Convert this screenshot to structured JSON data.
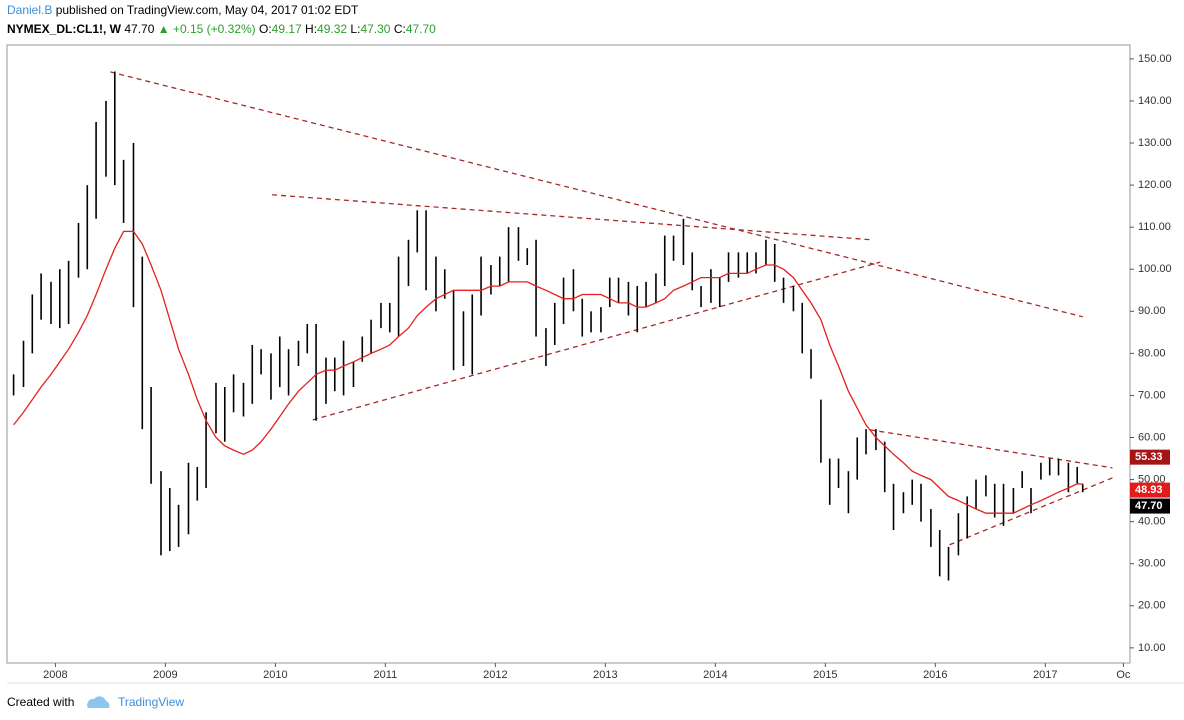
{
  "header": {
    "author": "Daniel.B",
    "published": "published on TradingView.com, May 04, 2017 01:02 EDT",
    "symbol": "NYMEX_DL:CL1!, W",
    "price": "47.70",
    "change": "▲ +0.15 (+0.32%)",
    "ohlc": [
      {
        "label": "O:",
        "value": "49.17"
      },
      {
        "label": "H:",
        "value": "49.32"
      },
      {
        "label": "L:",
        "value": "47.30"
      },
      {
        "label": "C:",
        "value": "47.70"
      }
    ]
  },
  "footer": {
    "created": "Created with",
    "brand": "TradingView"
  },
  "chart_data": {
    "type": "bar_range",
    "xlim": [
      2007.56,
      2017.77
    ],
    "ylim": [
      6.4,
      153.3
    ],
    "xticks": [
      2008,
      2009,
      2010,
      2011,
      2012,
      2013,
      2014,
      2015,
      2016,
      2017,
      {
        "value": 2017.71,
        "label": "Oc"
      }
    ],
    "yticks": [
      {
        "value": 150,
        "label": "150.00"
      },
      {
        "value": 140,
        "label": "140.00"
      },
      {
        "value": 130,
        "label": "130.00"
      },
      {
        "value": 120,
        "label": "120.00"
      },
      {
        "value": 110,
        "label": "110.00"
      },
      {
        "value": 100,
        "label": "100.00"
      },
      {
        "value": 90,
        "label": "90.00"
      },
      {
        "value": 80,
        "label": "80.00"
      },
      {
        "value": 70,
        "label": "70.00"
      },
      {
        "value": 60,
        "label": "60.00"
      },
      {
        "value": 50,
        "label": "50.00"
      },
      {
        "value": 40,
        "label": "40.00"
      },
      {
        "value": 30,
        "label": "30.00"
      },
      {
        "value": 20,
        "label": "20.00"
      },
      {
        "value": 10,
        "label": "10.00"
      }
    ],
    "bar_color": "#000000",
    "ma_color": "#e52020",
    "trend_color": "#a52a2a",
    "x": [
      2007.62,
      2007.71,
      2007.79,
      2007.87,
      2007.96,
      2008.04,
      2008.12,
      2008.21,
      2008.29,
      2008.37,
      2008.46,
      2008.54,
      2008.62,
      2008.71,
      2008.79,
      2008.87,
      2008.96,
      2009.04,
      2009.12,
      2009.21,
      2009.29,
      2009.37,
      2009.46,
      2009.54,
      2009.62,
      2009.71,
      2009.79,
      2009.87,
      2009.96,
      2010.04,
      2010.12,
      2010.21,
      2010.29,
      2010.37,
      2010.46,
      2010.54,
      2010.62,
      2010.71,
      2010.79,
      2010.87,
      2010.96,
      2011.04,
      2011.12,
      2011.21,
      2011.29,
      2011.37,
      2011.46,
      2011.54,
      2011.62,
      2011.71,
      2011.79,
      2011.87,
      2011.96,
      2012.04,
      2012.12,
      2012.21,
      2012.29,
      2012.37,
      2012.46,
      2012.54,
      2012.62,
      2012.71,
      2012.79,
      2012.87,
      2012.96,
      2013.04,
      2013.12,
      2013.21,
      2013.29,
      2013.37,
      2013.46,
      2013.54,
      2013.62,
      2013.71,
      2013.79,
      2013.87,
      2013.96,
      2014.04,
      2014.12,
      2014.21,
      2014.29,
      2014.37,
      2014.46,
      2014.54,
      2014.62,
      2014.71,
      2014.79,
      2014.87,
      2014.96,
      2015.04,
      2015.12,
      2015.21,
      2015.29,
      2015.37,
      2015.46,
      2015.54,
      2015.62,
      2015.71,
      2015.79,
      2015.87,
      2015.96,
      2016.04,
      2016.12,
      2016.21,
      2016.29,
      2016.37,
      2016.46,
      2016.54,
      2016.62,
      2016.71,
      2016.79,
      2016.87,
      2016.96,
      2017.04,
      2017.12,
      2017.21,
      2017.29,
      2017.34
    ],
    "high": [
      75,
      83,
      94,
      99,
      97,
      100,
      102,
      111,
      120,
      135,
      140,
      147,
      126,
      130,
      103,
      72,
      52,
      48,
      44,
      54,
      53,
      66,
      73,
      72,
      75,
      73,
      82,
      81,
      80,
      84,
      81,
      83,
      87,
      87,
      79,
      79,
      83,
      78,
      84,
      88,
      92,
      92,
      103,
      107,
      114,
      114,
      103,
      100,
      95,
      90,
      94,
      103,
      101,
      103,
      110,
      110,
      105,
      107,
      86,
      92,
      98,
      100,
      93,
      90,
      91,
      98,
      98,
      97,
      96,
      97,
      99,
      108,
      108,
      112,
      104,
      96,
      100,
      98,
      104,
      104,
      104,
      104,
      107,
      106,
      98,
      96,
      92,
      81,
      69,
      55,
      55,
      52,
      60,
      62,
      62,
      59,
      49,
      47,
      50,
      49,
      43,
      38,
      34,
      42,
      46,
      50,
      51,
      49,
      49,
      48,
      52,
      48,
      54,
      55,
      55,
      54,
      53,
      49
    ],
    "low": [
      70,
      72,
      80,
      88,
      87,
      86,
      87,
      98,
      100,
      112,
      122,
      120,
      111,
      91,
      62,
      49,
      32,
      33,
      34,
      37,
      45,
      48,
      61,
      59,
      66,
      65,
      68,
      75,
      69,
      72,
      70,
      77,
      80,
      64,
      68,
      71,
      70,
      72,
      78,
      80,
      86,
      85,
      84,
      96,
      104,
      95,
      90,
      93,
      76,
      77,
      75,
      89,
      94,
      96,
      97,
      102,
      101,
      84,
      77,
      82,
      87,
      90,
      84,
      85,
      85,
      91,
      92,
      89,
      85,
      91,
      92,
      96,
      102,
      101,
      95,
      91,
      92,
      91,
      97,
      98,
      99,
      99,
      101,
      97,
      92,
      90,
      80,
      74,
      54,
      44,
      48,
      42,
      50,
      56,
      57,
      47,
      38,
      42,
      44,
      40,
      34,
      27,
      26,
      32,
      36,
      43,
      46,
      41,
      39,
      42,
      48,
      42,
      50,
      51,
      51,
      47,
      49,
      47
    ],
    "ma": [
      63,
      66,
      69,
      72,
      75,
      78,
      81,
      85,
      89,
      94,
      100,
      105,
      109,
      109,
      106,
      101,
      95,
      88,
      81,
      75,
      69,
      64,
      60,
      58,
      57,
      56,
      57,
      59,
      62,
      65,
      68,
      71,
      73,
      75,
      76,
      76,
      77,
      78,
      79,
      80,
      81,
      82,
      84,
      86,
      89,
      91,
      93,
      94,
      95,
      95,
      95,
      95,
      96,
      96,
      97,
      97,
      97,
      96,
      95,
      94,
      93,
      93,
      94,
      94,
      94,
      93,
      92,
      92,
      91,
      91,
      92,
      93,
      95,
      96,
      97,
      98,
      98,
      98,
      99,
      99,
      99,
      100,
      101,
      101,
      100,
      98,
      95,
      92,
      88,
      82,
      77,
      71,
      67,
      63,
      60,
      58,
      56,
      54,
      52,
      51,
      50,
      48,
      46,
      45,
      44,
      43,
      42,
      42,
      42,
      42,
      43,
      44,
      45,
      46,
      47,
      48,
      49,
      48.93
    ],
    "trendlines": [
      {
        "x": [
          2008.5,
          2017.34
        ],
        "y": [
          146.9,
          88.7
        ]
      },
      {
        "x": [
          2009.97,
          2015.42
        ],
        "y": [
          117.7,
          107.0
        ]
      },
      {
        "x": [
          2010.34,
          2015.5
        ],
        "y": [
          64.2,
          101.7
        ]
      },
      {
        "x": [
          2015.41,
          2017.61
        ],
        "y": [
          61.8,
          52.8
        ]
      },
      {
        "x": [
          2016.13,
          2017.61
        ],
        "y": [
          34.5,
          50.4
        ]
      }
    ],
    "price_labels": [
      {
        "value": 55.33,
        "label": "55.33",
        "color": "#a51414"
      },
      {
        "value": 48.93,
        "label": "48.93",
        "color": "#e41b1b"
      },
      {
        "value": 47.7,
        "label": "47.70",
        "color": "#000000"
      }
    ]
  }
}
